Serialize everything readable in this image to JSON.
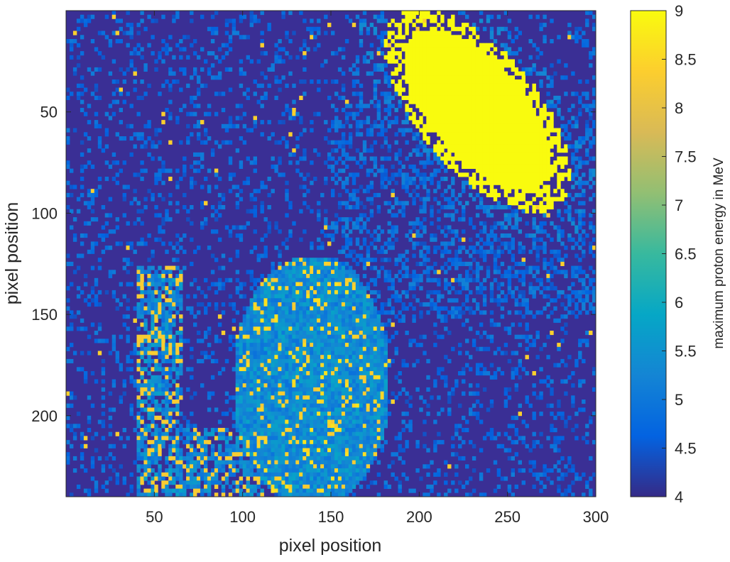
{
  "chart_data": {
    "type": "heatmap",
    "title": "",
    "xlabel": "pixel position",
    "ylabel": "pixel position",
    "xlim": [
      0,
      300
    ],
    "ylim": [
      240,
      0
    ],
    "y_direction": "reversed",
    "x_ticks": [
      50,
      100,
      150,
      200,
      250,
      300
    ],
    "y_ticks": [
      50,
      100,
      150,
      200
    ],
    "colormap": "parula",
    "colorbar": {
      "label": "maximum proton energy in MeV",
      "range": [
        4,
        9
      ],
      "ticks": [
        "4",
        "4.5",
        "5",
        "5.5",
        "6",
        "6.5",
        "7",
        "7.5",
        "8",
        "8.5",
        "9"
      ],
      "position": "right"
    },
    "background_value": 4.1,
    "grid": false,
    "regions": [
      {
        "name": "upper-right bright spot",
        "x_range": [
          190,
          275
        ],
        "y_range": [
          5,
          95
        ],
        "approx_value": 9
      },
      {
        "name": "central speckled cluster",
        "x_range": [
          95,
          180
        ],
        "y_range": [
          115,
          240
        ],
        "approx_value": 5.3
      },
      {
        "name": "left vertical band",
        "x_range": [
          40,
          65
        ],
        "y_range": [
          125,
          240
        ],
        "approx_value": 5.4
      },
      {
        "name": "bottom connecting band",
        "x_range": [
          45,
          110
        ],
        "y_range": [
          205,
          240
        ],
        "approx_value": 5.2
      },
      {
        "name": "diffuse halo right",
        "x_range": [
          150,
          300
        ],
        "y_range": [
          40,
          150
        ],
        "approx_value": 4.5
      }
    ]
  }
}
